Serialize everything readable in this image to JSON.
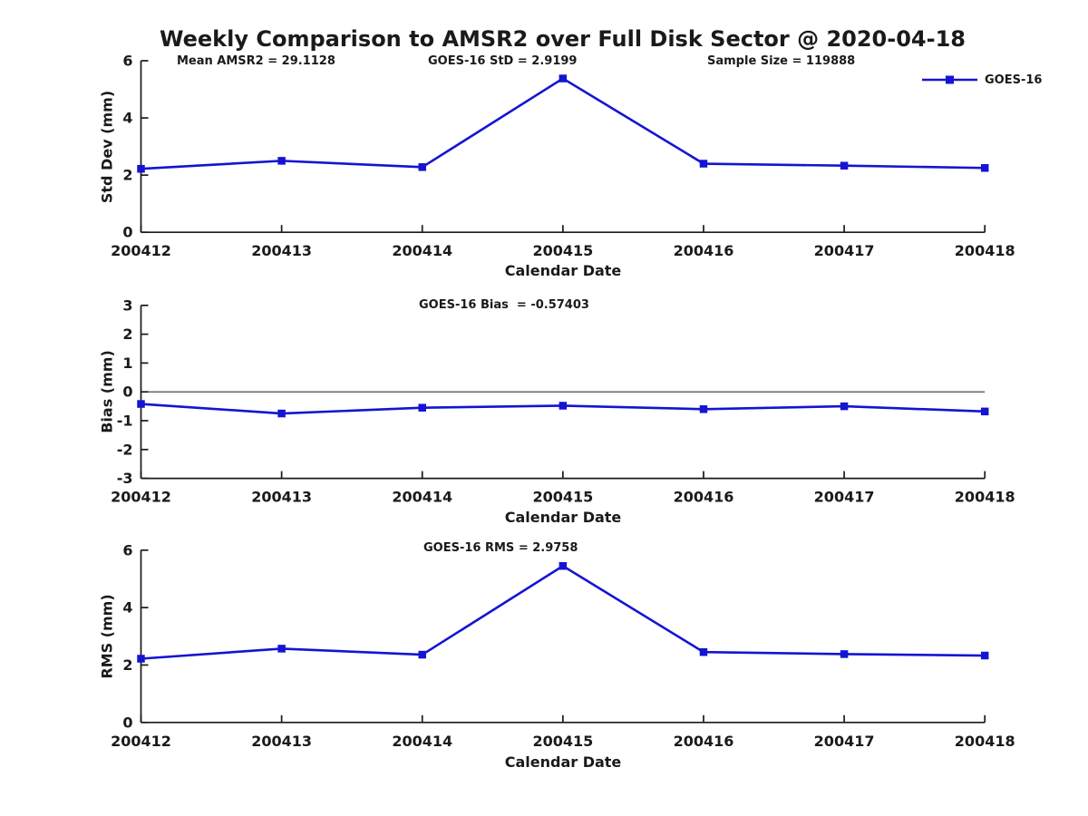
{
  "title": "Weekly Comparison to AMSR2 over Full Disk Sector @ 2020-04-18",
  "colors": {
    "series_line": "#1414d2",
    "axis": "#1a1a1a",
    "zero_line": "#333333"
  },
  "legend": {
    "label": "GOES-16",
    "position": "top-right-of-first-subplot"
  },
  "chart_data": [
    {
      "type": "line",
      "name": "std-dev",
      "ylabel": "Std Dev (mm)",
      "xlabel": "Calendar Date",
      "categories": [
        "200412",
        "200413",
        "200414",
        "200415",
        "200416",
        "200417",
        "200418"
      ],
      "series": [
        {
          "name": "GOES-16",
          "values": [
            2.22,
            2.5,
            2.28,
            5.38,
            2.4,
            2.33,
            2.25
          ]
        }
      ],
      "ylim": [
        0,
        6
      ],
      "yticks": [
        0,
        2,
        4,
        6
      ],
      "grid": false,
      "zero_line": false,
      "annotations": [
        "Mean AMSR2 = 29.1128",
        "GOES-16 StD = 2.9199",
        "Sample Size = 119888"
      ]
    },
    {
      "type": "line",
      "name": "bias",
      "ylabel": "Bias (mm)",
      "xlabel": "Calendar Date",
      "categories": [
        "200412",
        "200413",
        "200414",
        "200415",
        "200416",
        "200417",
        "200418"
      ],
      "series": [
        {
          "name": "GOES-16",
          "values": [
            -0.42,
            -0.75,
            -0.55,
            -0.48,
            -0.6,
            -0.5,
            -0.68
          ]
        }
      ],
      "ylim": [
        -3,
        3
      ],
      "yticks": [
        -3,
        -2,
        -1,
        0,
        1,
        2,
        3
      ],
      "grid": false,
      "zero_line": true,
      "annotations": [
        "GOES-16 Bias  = -0.57403"
      ]
    },
    {
      "type": "line",
      "name": "rms",
      "ylabel": "RMS (mm)",
      "xlabel": "Calendar Date",
      "categories": [
        "200412",
        "200413",
        "200414",
        "200415",
        "200416",
        "200417",
        "200418"
      ],
      "series": [
        {
          "name": "GOES-16",
          "values": [
            2.22,
            2.57,
            2.36,
            5.45,
            2.45,
            2.38,
            2.33
          ]
        }
      ],
      "ylim": [
        0,
        6
      ],
      "yticks": [
        0,
        2,
        4,
        6
      ],
      "grid": false,
      "zero_line": false,
      "annotations": [
        "GOES-16 RMS = 2.9758"
      ]
    }
  ]
}
